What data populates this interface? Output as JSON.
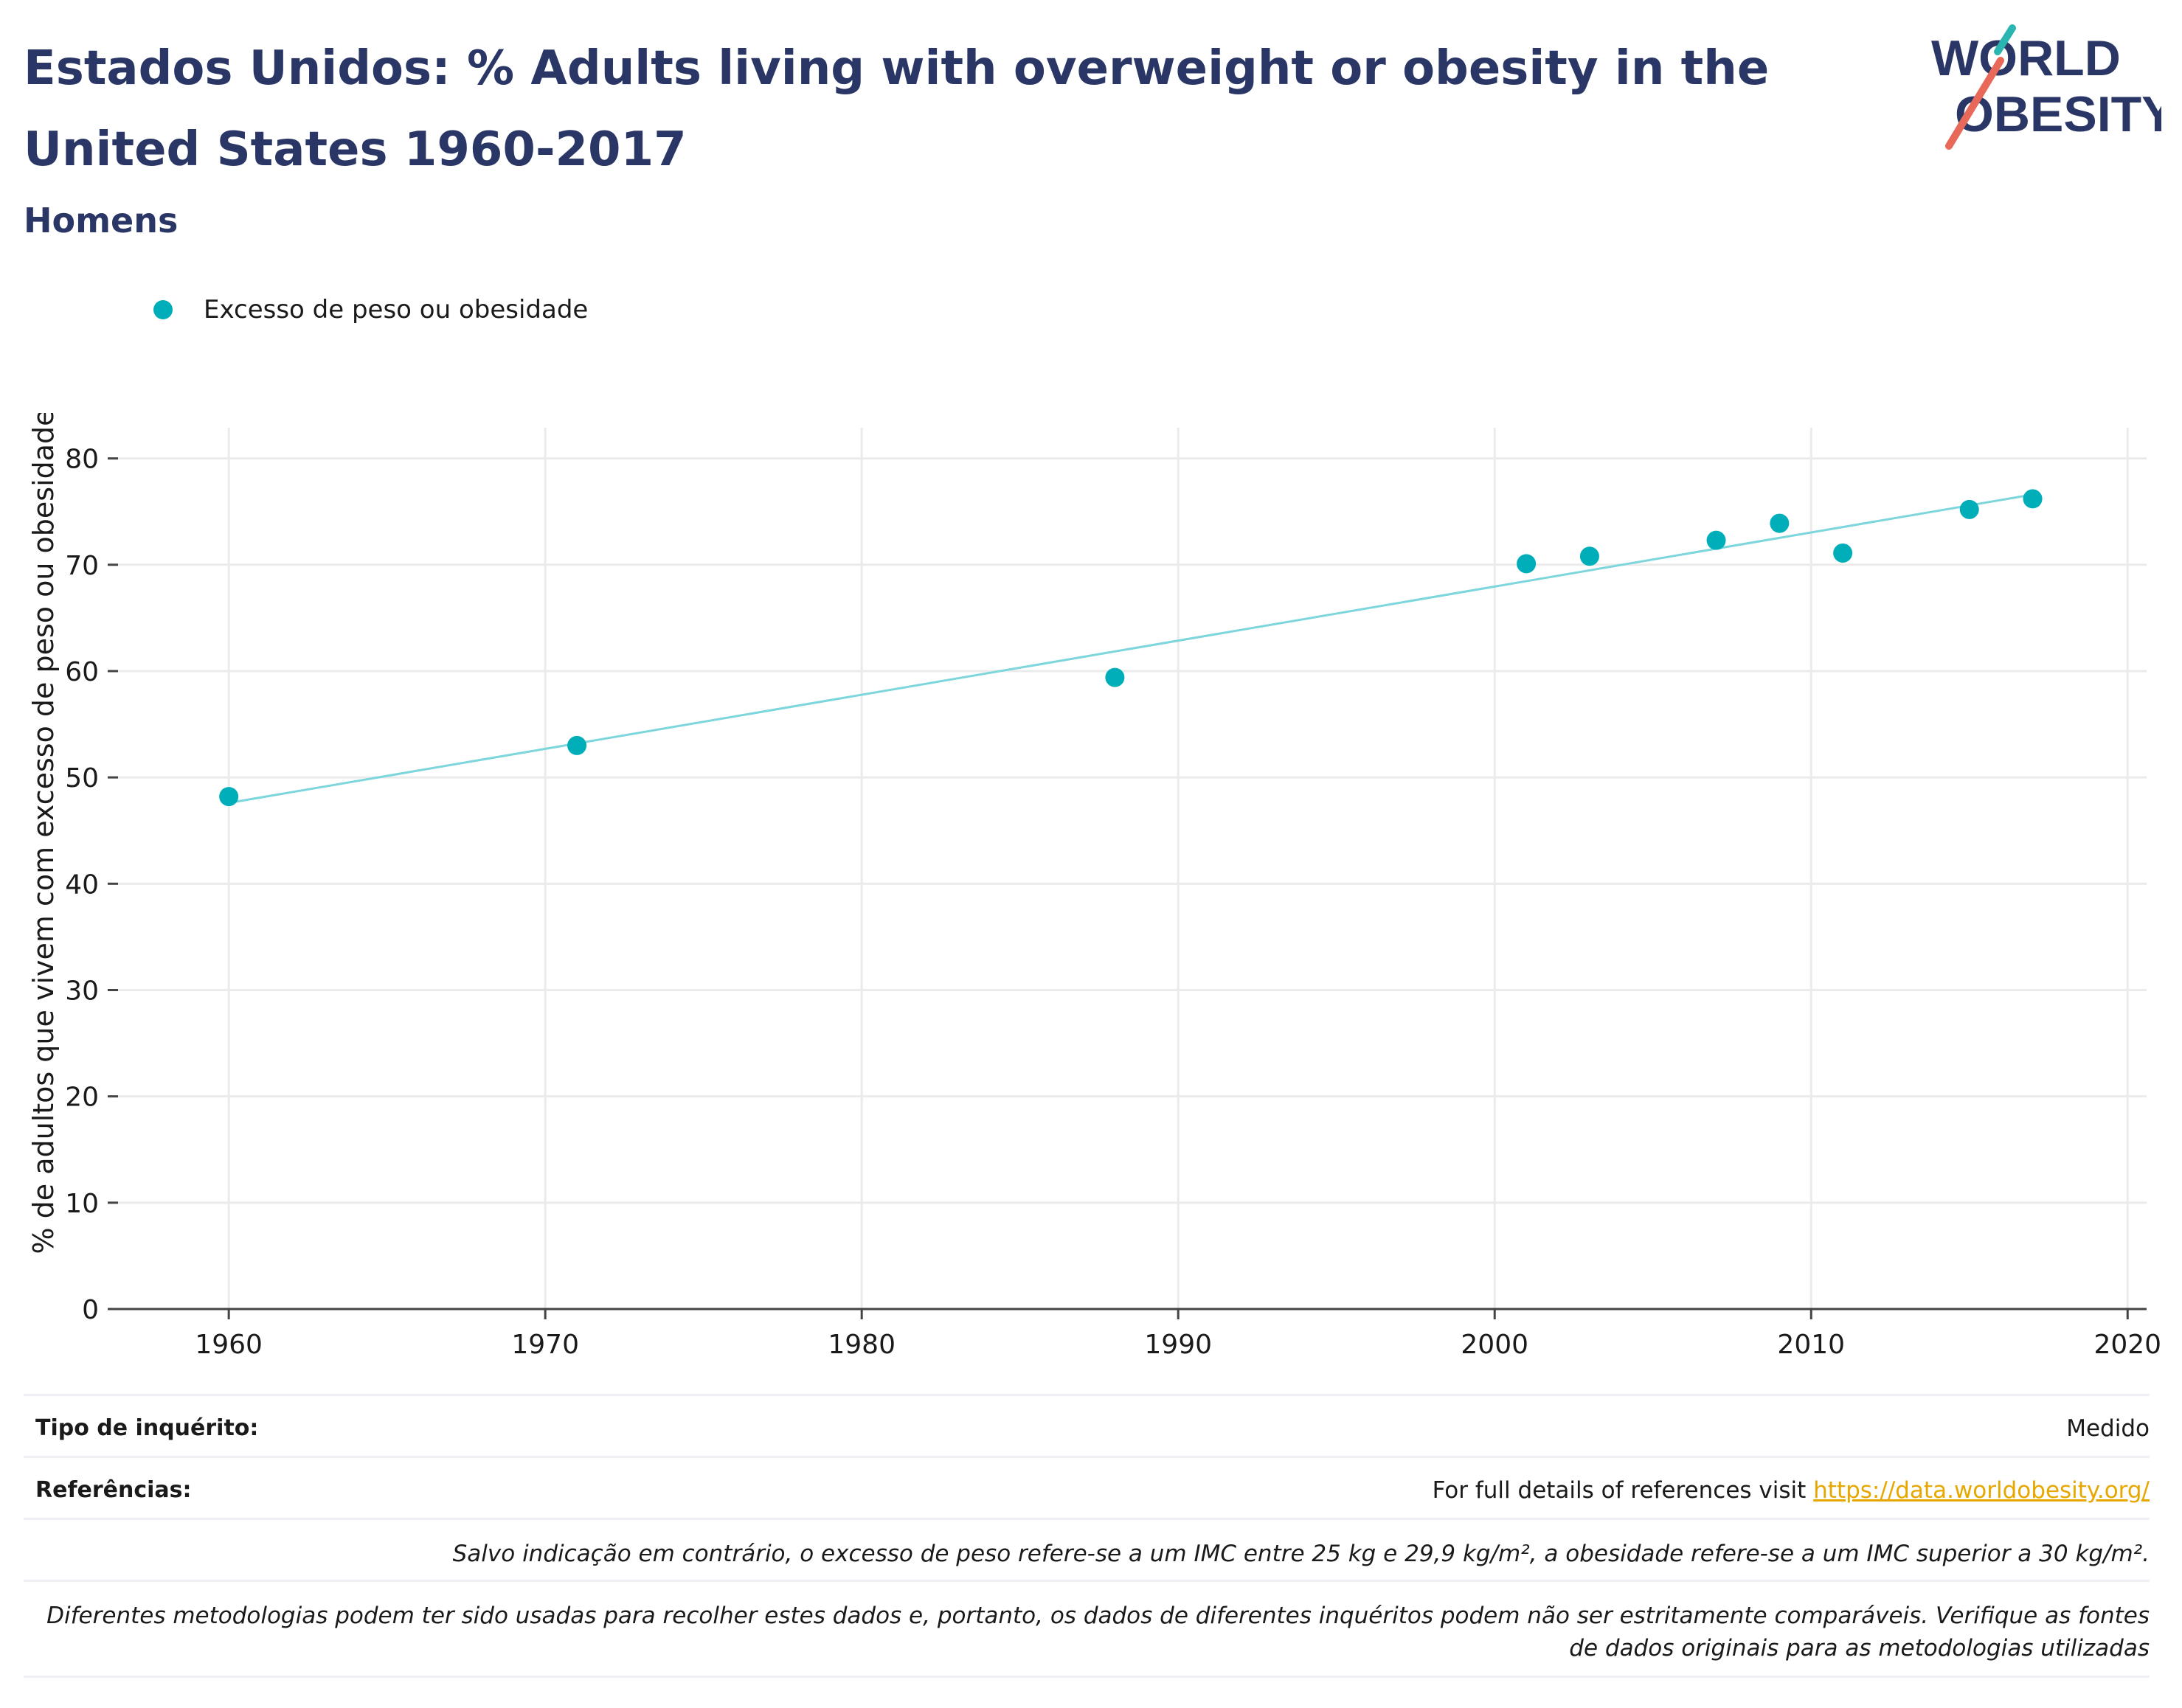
{
  "header": {
    "title": "Estados Unidos: % Adults living with overweight or obesity in the United States 1960-2017",
    "subtitle": "Homens"
  },
  "logo": {
    "line1": "WORLD",
    "line2": "OBESITY",
    "icon": "world-obesity-logo"
  },
  "colors": {
    "accent": "#00aeb9",
    "trend": "#7dd6dc",
    "title": "#2a3766",
    "link": "#e6a800",
    "logo_teal": "#2bb5b0",
    "logo_red": "#e8685a"
  },
  "chart_data": {
    "type": "scatter",
    "title": "",
    "xlabel": "",
    "ylabel": "% de adultos que vivem com excesso de peso ou obesidade",
    "xlim": [
      1956.5,
      2020.6
    ],
    "ylim": [
      0,
      81.5
    ],
    "xticks": [
      1960,
      1970,
      1980,
      1990,
      2000,
      2010,
      2020
    ],
    "yticks": [
      0,
      10,
      20,
      30,
      40,
      50,
      60,
      70,
      80
    ],
    "grid": true,
    "legend_position": "top-left",
    "series": [
      {
        "name": "Excesso de peso ou obesidade",
        "x": [
          1960,
          1971,
          1988,
          2001,
          2003,
          2007,
          2009,
          2011,
          2015,
          2017
        ],
        "y": [
          48.2,
          53.0,
          59.4,
          70.1,
          70.8,
          72.3,
          73.9,
          71.1,
          75.2,
          76.2
        ]
      }
    ],
    "trendline": {
      "x": [
        1960,
        2017
      ],
      "y": [
        47.6,
        76.6
      ]
    }
  },
  "footer": {
    "survey_type_label": "Tipo de inquérito:",
    "survey_type_value": "Medido",
    "references_label": "Referências:",
    "references_text": "For full details of references visit ",
    "references_link": "https://data.worldobesity.org/",
    "note_bmi": "Salvo indicação em contrário, o excesso de peso refere-se a um IMC entre 25 kg e 29,9 kg/m², a obesidade refere-se a um IMC superior a 30 kg/m².",
    "note_methods_line1": "Diferentes metodologias podem ter sido usadas para recolher estes dados e, portanto, os dados de diferentes inquéritos podem não ser estritamente comparáveis. Verifique as fontes",
    "note_methods_line2": "de dados originais para as metodologias utilizadas"
  }
}
